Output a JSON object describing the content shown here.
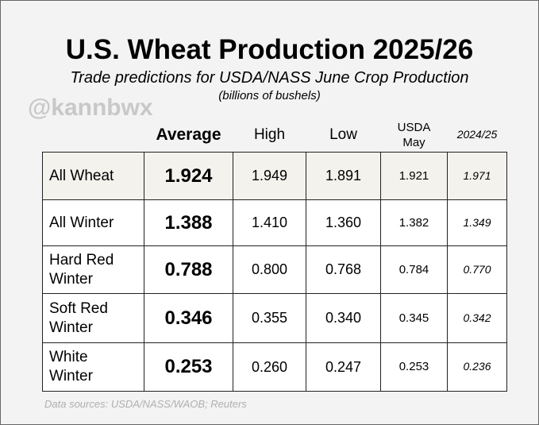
{
  "header": {
    "title": "U.S. Wheat Production 2025/26",
    "subtitle": "Trade predictions for USDA/NASS June Crop Production",
    "units": "(billions of bushels)",
    "watermark": "@kannbwx"
  },
  "table": {
    "columns": [
      "Average",
      "High",
      "Low",
      "USDA May",
      "2024/25"
    ],
    "rows": [
      [
        "All Wheat",
        "1.924",
        "1.949",
        "1.891",
        "1.921",
        "1.971"
      ],
      [
        "All Winter",
        "1.388",
        "1.410",
        "1.360",
        "1.382",
        "1.349"
      ],
      [
        "Hard Red Winter",
        "0.788",
        "0.800",
        "0.768",
        "0.784",
        "0.770"
      ],
      [
        "Soft Red Winter",
        "0.346",
        "0.355",
        "0.340",
        "0.345",
        "0.342"
      ],
      [
        "White Winter",
        "0.253",
        "0.260",
        "0.247",
        "0.253",
        "0.236"
      ]
    ]
  },
  "source": "Data sources: USDA/NASS/WAOB; Reuters"
}
